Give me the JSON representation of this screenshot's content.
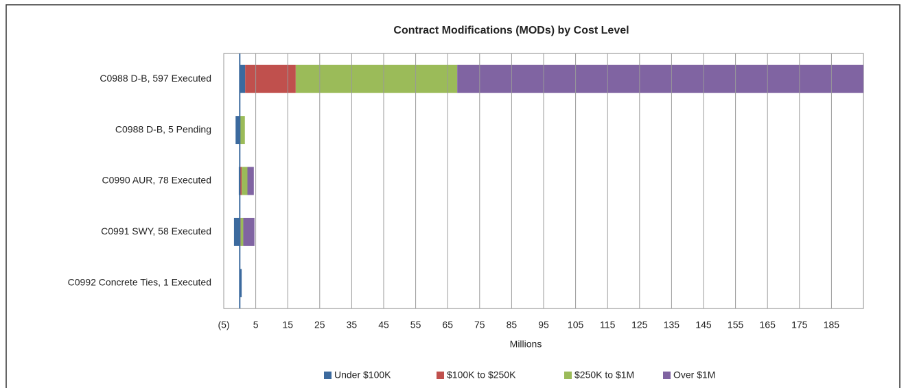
{
  "chart_data": {
    "type": "stacked-bar-horizontal",
    "title": "Contract Modifications (MODs) by Cost Level",
    "x_label": "Millions",
    "categories": [
      "C0988 D-B, 597 Executed",
      "C0988 D-B, 5 Pending",
      "C0990 AUR, 78 Executed",
      "C0991 SWY, 58 Executed",
      "C0992  Concrete Ties, 1 Executed"
    ],
    "series": [
      {
        "name": "Under $100K",
        "color": "#3c6a9e",
        "values": [
          1.7,
          -1.3,
          -0.3,
          -1.8,
          0.6
        ]
      },
      {
        "name": "$100K to $250K",
        "color": "#c0504d",
        "values": [
          15.8,
          0,
          0.6,
          0.3,
          0
        ]
      },
      {
        "name": "$250K to $1M",
        "color": "#9bbb59",
        "values": [
          50.5,
          1.6,
          1.8,
          0.8,
          0
        ]
      },
      {
        "name": "Over $1M",
        "color": "#8064a2",
        "values": [
          127,
          0,
          2.0,
          3.5,
          0
        ]
      }
    ],
    "xlim": [
      -5,
      195
    ],
    "xticks": [
      {
        "value": -5,
        "label": "(5)"
      },
      5,
      15,
      25,
      35,
      45,
      55,
      65,
      75,
      85,
      95,
      105,
      115,
      125,
      135,
      145,
      155,
      165,
      175,
      185
    ],
    "grid": true,
    "legend": "bottom"
  }
}
